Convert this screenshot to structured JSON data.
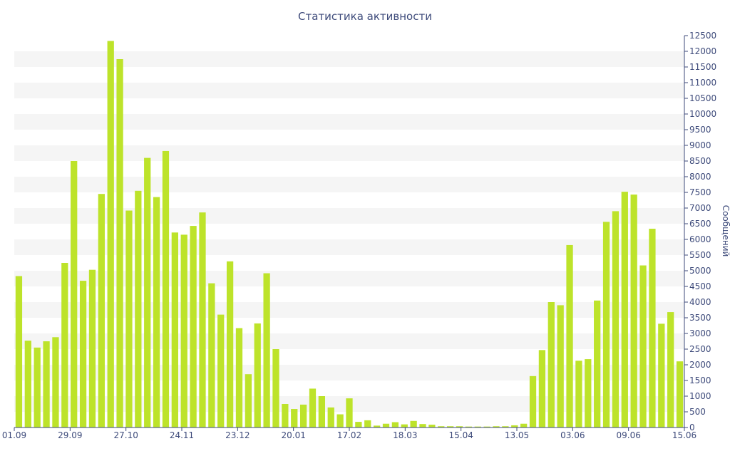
{
  "chart_data": {
    "type": "bar",
    "title": "Статистика активности",
    "xlabel": "",
    "ylabel": "Сообщений",
    "ylim": [
      0,
      12500
    ],
    "y_ticks": [
      0,
      500,
      1000,
      1500,
      2000,
      2500,
      3000,
      3500,
      4000,
      4500,
      5000,
      5500,
      6000,
      6500,
      7000,
      7500,
      8000,
      8500,
      9000,
      9500,
      10000,
      10500,
      11000,
      11500,
      12000,
      12500
    ],
    "x_tick_labels": [
      "01.09",
      "29.09",
      "27.10",
      "24.11",
      "23.12",
      "20.01",
      "17.02",
      "18.03",
      "15.04",
      "13.05",
      "03.06",
      "09.06",
      "15.06"
    ],
    "bar_color": "#bde32a",
    "band_color": "#f5f5f5",
    "axis_color": "#3d4a7a",
    "grid": "horizontal bands",
    "series": [
      {
        "values": [
          4830,
          2770,
          2550,
          2750,
          2880,
          5250,
          8500,
          4680,
          5030,
          7450,
          12330,
          11750,
          6920,
          7550,
          8600,
          7350,
          8820,
          6220,
          6150,
          6430,
          6860,
          4600,
          3600,
          5300,
          3170,
          1700,
          3320,
          4920,
          2500,
          750,
          590,
          730,
          1240,
          1000,
          640,
          420,
          930,
          180,
          230,
          60,
          120,
          170,
          100,
          210,
          110,
          90,
          40,
          40,
          40,
          30,
          30,
          30,
          40,
          40,
          70,
          120,
          1640,
          2470,
          4000,
          3900,
          5820,
          2130,
          2180,
          4050,
          6560,
          6900,
          7520,
          7430,
          5170,
          6340,
          3310,
          3680,
          2110
        ]
      }
    ]
  }
}
